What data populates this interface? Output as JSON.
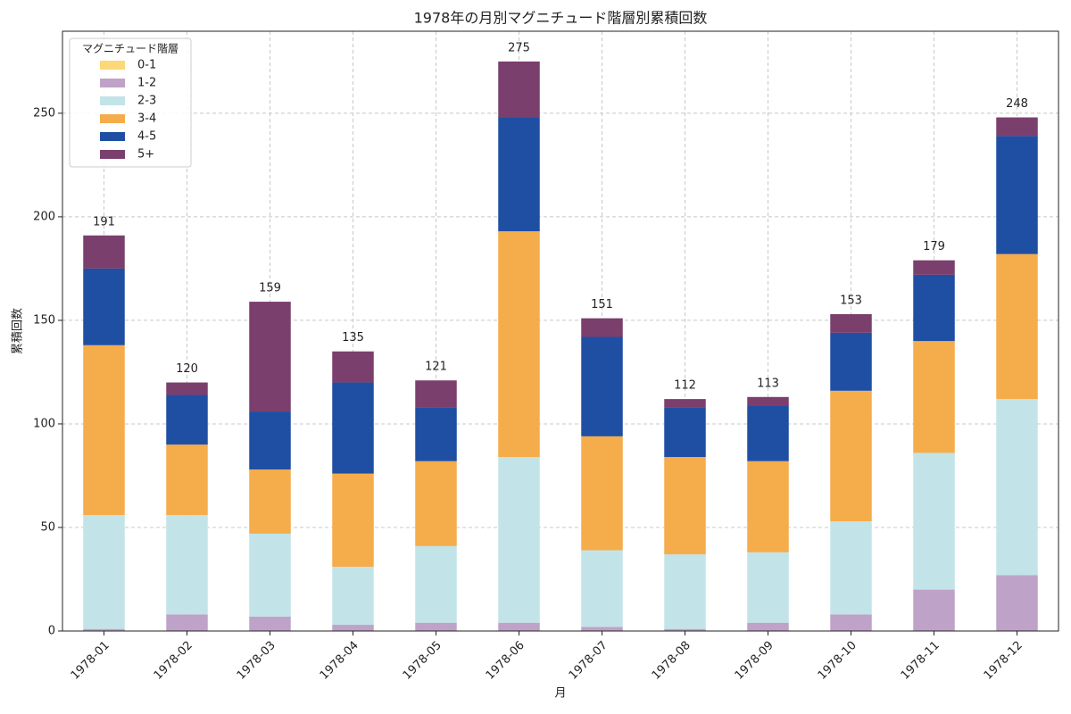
{
  "chart_data": {
    "type": "stacked-bar",
    "title": "1978年の月別マグニチュード階層別累積回数",
    "xlabel": "月",
    "ylabel": "累積回数",
    "legend_title": "マグニチュード階層",
    "legend_position": "upper left",
    "categories": [
      "1978-01",
      "1978-02",
      "1978-03",
      "1978-04",
      "1978-05",
      "1978-06",
      "1978-07",
      "1978-08",
      "1978-09",
      "1978-10",
      "1978-11",
      "1978-12"
    ],
    "series": [
      {
        "name": "0-1",
        "color": "#fdd878",
        "values": [
          0,
          0,
          0,
          0,
          0,
          0,
          0,
          0,
          0,
          0,
          0,
          0
        ]
      },
      {
        "name": "1-2",
        "color": "#bfa2c8",
        "values": [
          1,
          8,
          7,
          3,
          4,
          4,
          2,
          1,
          4,
          8,
          20,
          27
        ]
      },
      {
        "name": "2-3",
        "color": "#c2e4e8",
        "values": [
          55,
          48,
          40,
          28,
          37,
          80,
          37,
          36,
          34,
          45,
          66,
          85
        ]
      },
      {
        "name": "3-4",
        "color": "#f5ac4b",
        "values": [
          82,
          34,
          31,
          45,
          41,
          109,
          55,
          47,
          44,
          63,
          54,
          70
        ]
      },
      {
        "name": "4-5",
        "color": "#1f4fa3",
        "values": [
          37,
          24,
          28,
          44,
          26,
          55,
          48,
          24,
          27,
          28,
          32,
          57
        ]
      },
      {
        "name": "5+",
        "color": "#7b3f6e",
        "values": [
          16,
          6,
          53,
          15,
          13,
          27,
          9,
          4,
          4,
          9,
          7,
          9
        ]
      }
    ],
    "totals": [
      191,
      120,
      159,
      135,
      121,
      275,
      151,
      112,
      113,
      153,
      179,
      248
    ],
    "ylim": [
      0,
      289.6
    ],
    "yticks": [
      0,
      50,
      100,
      150,
      200,
      250
    ],
    "grid": true
  }
}
